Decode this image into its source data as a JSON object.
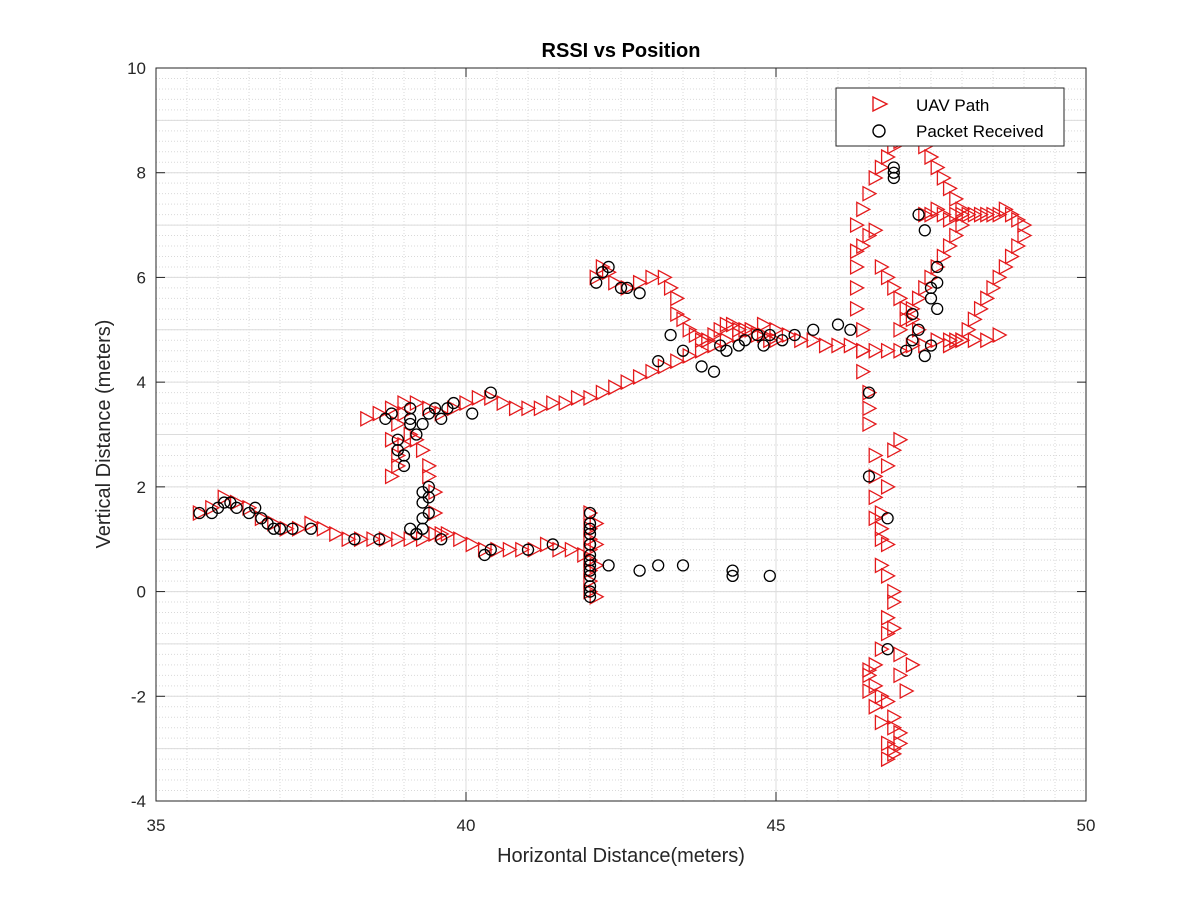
{
  "chart_data": {
    "type": "scatter",
    "title": "RSSI vs Position",
    "xlabel": "Horizontal Distance(meters)",
    "ylabel": "Vertical Distance (meters)",
    "xlim": [
      35,
      50
    ],
    "ylim": [
      -4,
      10
    ],
    "xticks": [
      35,
      40,
      45,
      50
    ],
    "yticks": [
      -4,
      -2,
      0,
      2,
      4,
      6,
      8,
      10
    ],
    "grid": "on (major and minor)",
    "legend_location": "top-right",
    "series": [
      {
        "name": "UAV Path",
        "marker": "triangle-right",
        "color": "#e41a1c",
        "x": [
          35.7,
          35.9,
          36.1,
          36.3,
          36.5,
          36.7,
          36.9,
          37.1,
          37.3,
          37.5,
          37.7,
          37.9,
          38.1,
          38.3,
          38.5,
          38.7,
          38.9,
          39.1,
          39.3,
          39.5,
          39.7,
          39.9,
          40.1,
          40.3,
          40.5,
          40.7,
          40.9,
          41.1,
          41.3,
          41.5,
          41.7,
          41.9,
          42.0,
          42.0,
          42.0,
          42.0,
          42.0,
          42.0,
          42.0,
          42.0,
          42.1,
          42.1,
          42.1,
          42.1,
          39.6,
          39.5,
          39.5,
          39.4,
          39.4,
          39.3,
          39.2,
          39.1,
          39.0,
          38.9,
          38.9,
          38.8,
          38.8,
          38.9,
          39.0,
          38.4,
          38.6,
          38.8,
          39.0,
          39.2,
          39.4,
          39.6,
          39.8,
          40.0,
          40.2,
          40.4,
          40.6,
          40.8,
          41.0,
          41.2,
          41.4,
          41.6,
          41.8,
          42.0,
          42.2,
          42.4,
          42.6,
          42.8,
          43.0,
          43.2,
          43.4,
          43.6,
          43.8,
          44.0,
          44.2,
          44.4,
          44.6,
          44.8,
          45.0,
          45.2,
          45.4,
          45.6,
          45.8,
          46.0,
          46.2,
          46.4,
          46.6,
          46.8,
          47.0,
          47.2,
          47.4,
          47.6,
          47.8,
          48.0,
          48.2,
          48.4,
          48.6,
          42.1,
          42.2,
          42.3,
          42.4,
          42.6,
          42.8,
          43.0,
          43.2,
          43.3,
          43.4,
          43.4,
          43.5,
          43.6,
          43.7,
          43.8,
          43.9,
          44.0,
          44.1,
          44.2,
          44.3,
          44.4,
          44.5,
          44.6,
          44.7,
          44.8,
          44.9,
          45.0,
          46.3,
          46.3,
          46.3,
          46.3,
          46.4,
          46.4,
          46.4,
          46.5,
          46.5,
          46.5,
          46.6,
          46.6,
          46.6,
          46.7,
          46.7,
          46.8,
          46.8,
          46.9,
          47.0,
          46.6,
          46.7,
          46.7,
          46.8,
          46.8,
          46.9,
          46.9,
          47.0,
          47.0,
          47.1,
          47.2,
          46.5,
          46.6,
          46.7,
          46.8,
          46.9,
          46.9,
          47.0,
          47.0,
          46.9,
          46.9,
          46.8,
          46.8,
          46.7,
          46.6,
          46.5,
          46.5,
          46.6,
          46.7,
          46.8,
          46.8,
          46.9,
          46.3,
          46.4,
          46.5,
          46.6,
          46.7,
          46.8,
          46.9,
          47.0,
          47.1,
          47.2,
          47.3,
          47.4,
          47.5,
          47.6,
          47.7,
          47.8,
          47.9,
          48.0,
          48.0,
          47.9,
          47.8,
          47.7,
          47.6,
          47.5,
          47.4,
          47.3,
          47.2,
          47.1,
          47.0,
          47.4,
          47.5,
          47.6,
          47.7,
          47.8,
          47.9,
          48.0,
          48.1,
          48.2,
          48.3,
          48.4,
          48.5,
          48.6,
          48.7,
          48.8,
          48.9,
          49.0,
          49.0,
          48.9,
          48.8,
          48.7,
          48.6,
          48.5,
          48.4,
          48.3,
          48.2,
          48.1,
          48.0,
          47.9,
          47.8,
          46.4,
          46.5,
          46.6,
          46.7,
          46.8,
          46.9,
          47.0,
          47.1,
          47.2,
          47.3
        ],
        "y": [
          1.5,
          1.6,
          1.8,
          1.7,
          1.6,
          1.4,
          1.3,
          1.2,
          1.2,
          1.3,
          1.2,
          1.1,
          1.0,
          1.0,
          1.0,
          1.0,
          1.0,
          1.0,
          1.0,
          1.1,
          1.1,
          1.0,
          0.9,
          0.8,
          0.8,
          0.8,
          0.8,
          0.8,
          0.9,
          0.8,
          0.8,
          0.7,
          1.5,
          1.2,
          1.0,
          0.8,
          0.6,
          0.4,
          0.2,
          0.0,
          -0.1,
          0.5,
          0.9,
          1.3,
          1.1,
          1.5,
          1.9,
          2.2,
          2.4,
          2.7,
          2.9,
          3.0,
          2.8,
          2.6,
          2.4,
          2.2,
          2.9,
          3.2,
          3.4,
          3.3,
          3.4,
          3.5,
          3.6,
          3.6,
          3.5,
          3.4,
          3.5,
          3.6,
          3.7,
          3.7,
          3.6,
          3.5,
          3.5,
          3.5,
          3.6,
          3.6,
          3.7,
          3.7,
          3.8,
          3.9,
          4.0,
          4.1,
          4.2,
          4.3,
          4.4,
          4.5,
          4.6,
          4.7,
          4.8,
          4.9,
          5.0,
          5.1,
          5.0,
          4.9,
          4.8,
          4.8,
          4.7,
          4.7,
          4.7,
          4.6,
          4.6,
          4.6,
          4.6,
          4.7,
          4.7,
          4.8,
          4.8,
          4.8,
          4.8,
          4.8,
          4.9,
          6.0,
          6.2,
          6.1,
          5.9,
          5.8,
          5.9,
          6.0,
          6.0,
          5.8,
          5.6,
          5.3,
          5.2,
          5.0,
          4.9,
          4.8,
          4.8,
          4.9,
          5.0,
          5.1,
          5.1,
          5.0,
          5.0,
          5.0,
          4.9,
          4.9,
          4.8,
          4.8,
          6.5,
          6.2,
          5.8,
          5.4,
          5.0,
          4.6,
          4.2,
          3.8,
          3.5,
          3.2,
          2.6,
          2.2,
          1.8,
          1.5,
          1.2,
          2.0,
          2.4,
          2.7,
          2.9,
          1.4,
          1.0,
          0.5,
          0.9,
          0.3,
          0.0,
          -0.7,
          -1.2,
          -1.6,
          -1.9,
          -1.4,
          -1.5,
          -1.8,
          -2.0,
          -2.1,
          -2.4,
          -2.6,
          -2.7,
          -2.9,
          -3.0,
          -3.1,
          -3.2,
          -2.9,
          -2.5,
          -2.2,
          -1.9,
          -1.6,
          -1.4,
          -1.1,
          -0.8,
          -0.5,
          -0.2,
          7.0,
          7.3,
          7.6,
          7.9,
          8.1,
          8.3,
          8.5,
          8.6,
          8.7,
          8.8,
          8.7,
          8.5,
          8.3,
          8.1,
          7.9,
          7.7,
          7.5,
          7.3,
          7.0,
          6.8,
          6.6,
          6.4,
          6.2,
          6.0,
          5.8,
          5.6,
          5.4,
          5.2,
          5.0,
          7.2,
          7.2,
          7.3,
          7.2,
          7.1,
          7.2,
          7.2,
          7.2,
          7.2,
          7.2,
          7.2,
          7.2,
          7.2,
          7.3,
          7.2,
          7.1,
          7.0,
          6.8,
          6.6,
          6.4,
          6.2,
          6.0,
          5.8,
          5.6,
          5.4,
          5.2,
          5.0,
          4.8,
          4.8,
          4.7,
          6.6,
          6.8,
          6.9,
          6.2,
          6.0,
          5.8,
          5.6,
          5.4,
          5.2,
          5.0
        ]
      },
      {
        "name": "Packet Received",
        "marker": "circle",
        "color": "#000000",
        "x": [
          35.7,
          35.9,
          36.0,
          36.1,
          36.2,
          36.3,
          36.5,
          36.6,
          36.7,
          36.8,
          36.9,
          37.0,
          37.2,
          37.5,
          38.2,
          38.6,
          39.2,
          39.6,
          40.3,
          40.4,
          41.0,
          41.4,
          42.0,
          42.0,
          42.0,
          42.0,
          42.0,
          42.0,
          42.0,
          42.0,
          42.0,
          42.0,
          42.0,
          42.0,
          42.0,
          42.0,
          42.3,
          42.8,
          43.1,
          43.5,
          44.3,
          44.3,
          44.9,
          39.3,
          39.3,
          39.4,
          39.4,
          39.4,
          39.3,
          39.3,
          39.2,
          39.1,
          39.0,
          39.0,
          38.9,
          38.9,
          39.1,
          39.1,
          38.7,
          38.8,
          39.1,
          39.2,
          39.3,
          39.4,
          39.5,
          39.6,
          39.7,
          39.8,
          40.1,
          40.4,
          42.1,
          42.2,
          42.3,
          42.5,
          42.6,
          42.8,
          43.1,
          43.3,
          43.5,
          43.8,
          44.0,
          44.1,
          44.2,
          44.4,
          44.5,
          44.7,
          44.8,
          44.9,
          45.1,
          45.3,
          45.6,
          46.0,
          46.2,
          46.5,
          46.5,
          46.8,
          47.1,
          47.2,
          47.3,
          47.4,
          47.5,
          47.6,
          46.9,
          46.9,
          46.9,
          46.8,
          47.5,
          47.6,
          47.6,
          47.3,
          47.4,
          47.5,
          47.2
        ],
        "y": [
          1.5,
          1.5,
          1.6,
          1.7,
          1.7,
          1.6,
          1.5,
          1.6,
          1.4,
          1.3,
          1.2,
          1.2,
          1.2,
          1.2,
          1.0,
          1.0,
          1.1,
          1.0,
          0.7,
          0.8,
          0.8,
          0.9,
          1.5,
          1.3,
          1.1,
          0.9,
          0.7,
          0.5,
          0.3,
          0.1,
          -0.1,
          0.6,
          0.9,
          1.2,
          0.4,
          0.0,
          0.5,
          0.4,
          0.5,
          0.5,
          0.4,
          0.3,
          0.3,
          1.7,
          1.9,
          2.0,
          1.8,
          1.5,
          1.4,
          1.2,
          1.1,
          1.2,
          2.6,
          2.4,
          2.7,
          2.9,
          3.3,
          3.5,
          3.3,
          3.4,
          3.2,
          3.0,
          3.2,
          3.4,
          3.5,
          3.3,
          3.5,
          3.6,
          3.4,
          3.8,
          5.9,
          6.1,
          6.2,
          5.8,
          5.8,
          5.7,
          4.4,
          4.9,
          4.6,
          4.3,
          4.2,
          4.7,
          4.6,
          4.7,
          4.8,
          4.9,
          4.7,
          4.9,
          4.8,
          4.9,
          5.0,
          5.1,
          5.0,
          3.8,
          2.2,
          1.4,
          4.6,
          5.3,
          5.0,
          4.5,
          4.7,
          5.4,
          7.9,
          8.0,
          8.1,
          -1.1,
          5.6,
          5.9,
          6.2,
          7.2,
          6.9,
          5.8,
          4.8
        ]
      }
    ]
  }
}
